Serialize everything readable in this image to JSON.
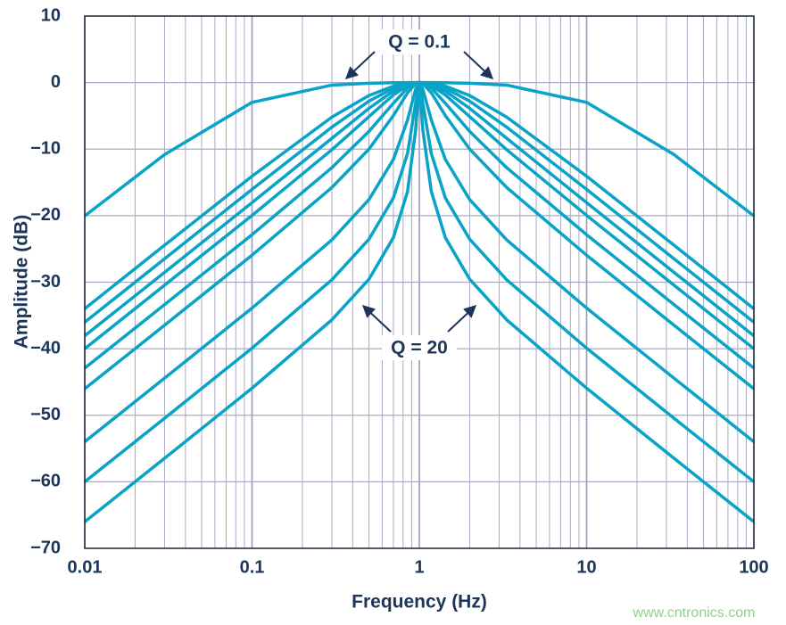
{
  "chart_data": {
    "type": "line",
    "log_x": true,
    "grid": true,
    "xlabel": "Frequency (Hz)",
    "ylabel": "Amplitude (dB)",
    "annotations": [
      "Q = 0.1",
      "Q = 20"
    ],
    "watermark": "www.cntronics.com",
    "x": [
      0.01,
      0.03,
      0.1,
      0.3,
      0.5,
      0.7,
      0.85,
      0.95,
      1,
      1.05,
      1.18,
      1.43,
      2,
      3.33,
      10,
      33.3,
      100
    ],
    "xlim": [
      0.01,
      100
    ],
    "xticks": [
      0.01,
      0.1,
      1,
      10,
      100
    ],
    "xminorticks": [
      0.02,
      0.03,
      0.04,
      0.05,
      0.06,
      0.07,
      0.08,
      0.09,
      0.2,
      0.3,
      0.4,
      0.5,
      0.6,
      0.7,
      0.8,
      0.9,
      2,
      3,
      4,
      5,
      6,
      7,
      8,
      9,
      20,
      30,
      40,
      50,
      60,
      70,
      80,
      90
    ],
    "ylim": [
      -70,
      10
    ],
    "yticks": [
      {
        "value": -70,
        "label": "−70"
      },
      {
        "value": -60,
        "label": "−60"
      },
      {
        "value": -50,
        "label": "−50"
      },
      {
        "value": -40,
        "label": "−40"
      },
      {
        "value": -30,
        "label": "−30"
      },
      {
        "value": -20,
        "label": "−20"
      },
      {
        "value": -10,
        "label": "−10"
      },
      0,
      10
    ],
    "color": "#0aa3c8",
    "series": [
      {
        "values": [
          -20.04,
          -10.82,
          -2.97,
          -0.38,
          -0.1,
          -0.02,
          0,
          0,
          0,
          0,
          0,
          -0.02,
          -0.1,
          -0.38,
          -2.97,
          -10.82,
          -20.04
        ]
      },
      {
        "values": [
          -33.98,
          -24.44,
          -14.07,
          -5.19,
          -1.94,
          -0.54,
          -0.11,
          -0.01,
          0,
          -0.01,
          -0.11,
          -0.54,
          -1.94,
          -5.19,
          -14.07,
          -24.44,
          -33.98
        ]
      },
      {
        "values": [
          -36.02,
          -26.48,
          -16.04,
          -6.7,
          -2.79,
          -0.84,
          -0.18,
          -0.02,
          0,
          -0.02,
          -0.18,
          -0.84,
          -2.79,
          -6.7,
          -16.04,
          -26.48,
          -36.02
        ]
      },
      {
        "values": [
          -38.06,
          -28.52,
          -18.04,
          -8.38,
          -3.87,
          -1.27,
          -0.29,
          -0.03,
          0,
          -0.03,
          -0.29,
          -1.27,
          -3.87,
          -8.38,
          -18.04,
          -28.52,
          -38.06
        ]
      },
      {
        "values": [
          -40,
          -30.45,
          -19.96,
          -10.09,
          -5.12,
          -1.85,
          -0.44,
          -0.05,
          0,
          -0.05,
          -0.44,
          -1.85,
          -5.12,
          -10.09,
          -19.96,
          -30.45,
          -40
        ]
      },
      {
        "values": [
          -42.92,
          -33.37,
          -22.86,
          -12.79,
          -7.33,
          -3.1,
          -0.82,
          -0.09,
          0,
          -0.09,
          -0.82,
          -3.1,
          -7.33,
          -12.79,
          -22.86,
          -33.37,
          -42.92
        ]
      },
      {
        "values": [
          -46.02,
          -36.47,
          -25.94,
          -15.77,
          -10,
          -4.95,
          -1.54,
          -0.18,
          0,
          -0.18,
          -1.54,
          -4.95,
          -10,
          -15.77,
          -25.94,
          -36.47,
          -46.02
        ]
      },
      {
        "values": [
          -53.98,
          -44.43,
          -33.89,
          -23.64,
          -17.58,
          -11.54,
          -5.64,
          -1.02,
          0,
          -1.02,
          -5.64,
          -11.54,
          -17.58,
          -23.64,
          -33.89,
          -44.43,
          -53.98
        ]
      },
      {
        "values": [
          -60,
          -50.45,
          -39.91,
          -29.64,
          -23.54,
          -17.33,
          -10.67,
          -3.12,
          0,
          -3.12,
          -10.67,
          -17.33,
          -23.54,
          -29.64,
          -39.91,
          -50.45,
          -60
        ]
      },
      {
        "values": [
          -66.02,
          -56.47,
          -45.93,
          -35.66,
          -29.55,
          -23.29,
          -16.4,
          -7.17,
          0,
          -7.17,
          -16.4,
          -23.29,
          -29.55,
          -35.66,
          -45.93,
          -56.47,
          -66.02
        ]
      }
    ]
  }
}
